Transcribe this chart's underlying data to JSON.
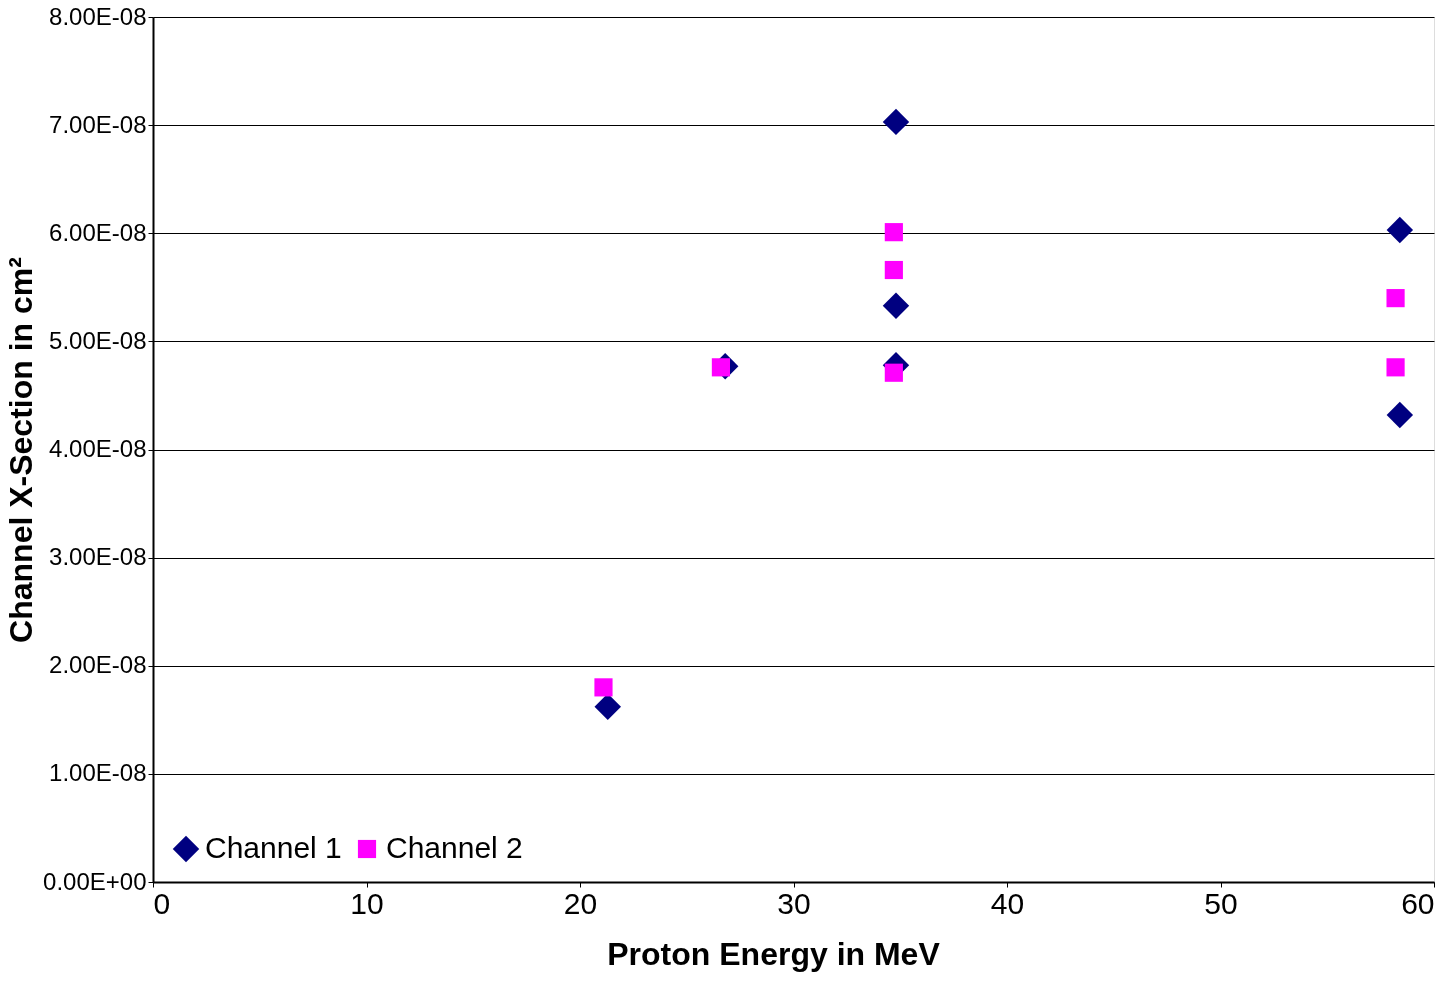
{
  "chart_data": {
    "type": "scatter",
    "xlabel": "Proton Energy in MeV",
    "ylabel": "Channel X-Section in cm²",
    "xlim": [
      0,
      60
    ],
    "xticks": [
      0,
      10,
      20,
      30,
      40,
      50,
      60
    ],
    "ylim": [
      0,
      8e-08
    ],
    "yticks": [
      {
        "value": 0,
        "label": "0.00E+00"
      },
      {
        "value": 1e-08,
        "label": "1.00E-08"
      },
      {
        "value": 2e-08,
        "label": "2.00E-08"
      },
      {
        "value": 3e-08,
        "label": "3.00E-08"
      },
      {
        "value": 4e-08,
        "label": "4.00E-08"
      },
      {
        "value": 5e-08,
        "label": "5.00E-08"
      },
      {
        "value": 6e-08,
        "label": "6.00E-08"
      },
      {
        "value": 7e-08,
        "label": "7.00E-08"
      },
      {
        "value": 8e-08,
        "label": "8.00E-08"
      }
    ],
    "grid": "y",
    "legend": "bottom left",
    "series": [
      {
        "name": "Channel 1",
        "color": "#000080",
        "marker": "diamond",
        "x": [
          21.3,
          26.8,
          34.8,
          34.8,
          34.8,
          58.4,
          58.4
        ],
        "values": [
          1.62e-08,
          4.77e-08,
          7.03e-08,
          5.33e-08,
          4.78e-08,
          6.03e-08,
          4.32e-08
        ]
      },
      {
        "name": "Channel 2",
        "color": "#ff00ff",
        "marker": "square",
        "x": [
          21.1,
          26.6,
          34.7,
          34.7,
          34.7,
          58.2,
          58.2
        ],
        "values": [
          1.8e-08,
          4.76e-08,
          6.01e-08,
          5.66e-08,
          4.71e-08,
          5.4e-08,
          4.76e-08
        ]
      }
    ]
  }
}
